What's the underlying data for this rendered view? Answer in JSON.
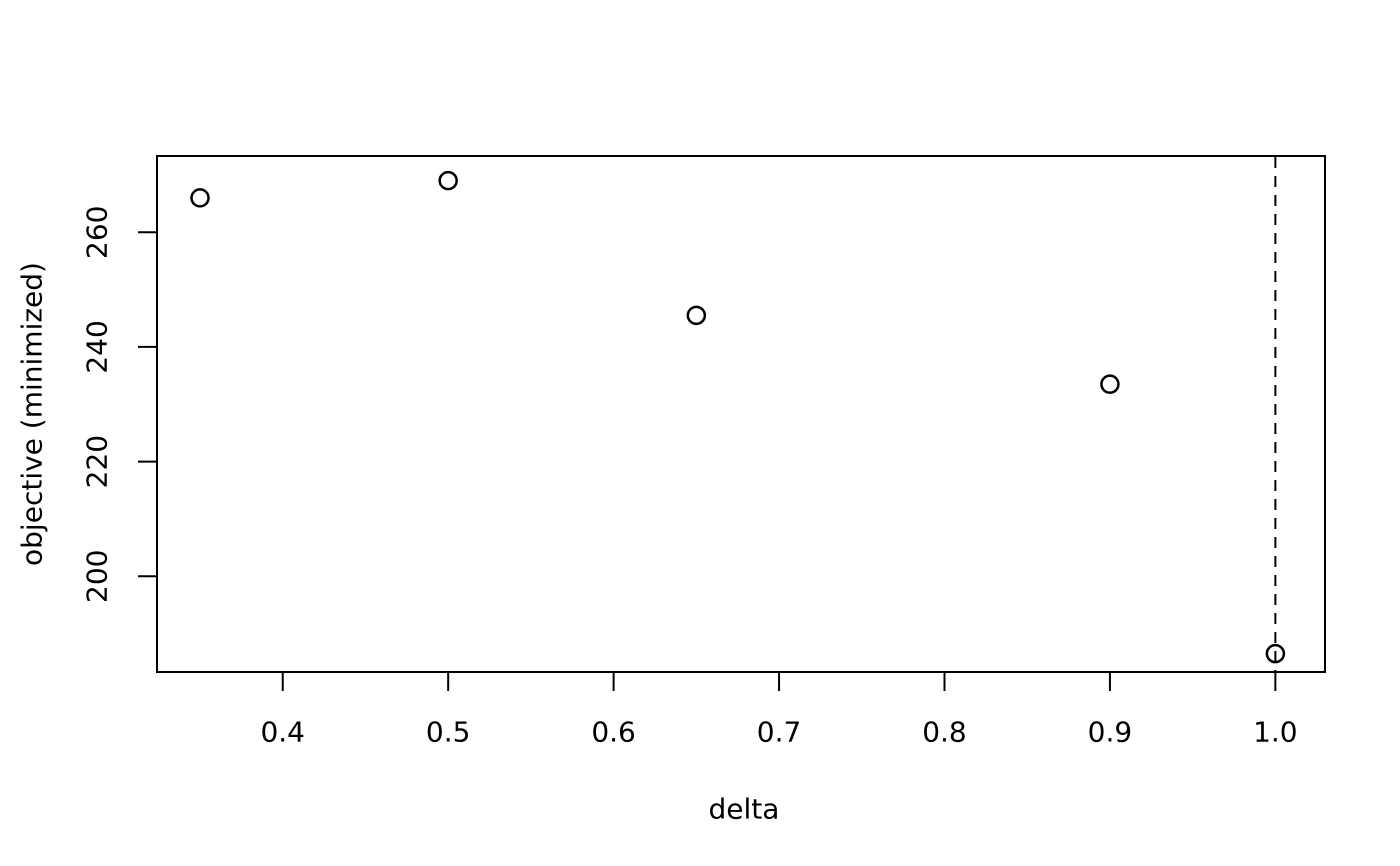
{
  "figure": {
    "background_color": "#ffffff",
    "foreground_color": "#000000"
  },
  "chart_data": {
    "type": "scatter",
    "title": "",
    "xlabel": "delta",
    "ylabel": "objective (minimized)",
    "points": [
      {
        "x": 0.35,
        "y": 266
      },
      {
        "x": 0.5,
        "y": 269
      },
      {
        "x": 0.65,
        "y": 245.5
      },
      {
        "x": 0.9,
        "y": 233.5
      },
      {
        "x": 1.0,
        "y": 186.5
      }
    ],
    "x_ticks": [
      {
        "value": 0.4,
        "label": "0.4"
      },
      {
        "value": 0.5,
        "label": "0.5"
      },
      {
        "value": 0.6,
        "label": "0.6"
      },
      {
        "value": 0.7,
        "label": "0.7"
      },
      {
        "value": 0.8,
        "label": "0.8"
      },
      {
        "value": 0.9,
        "label": "0.9"
      },
      {
        "value": 1.0,
        "label": "1.0"
      }
    ],
    "y_ticks": [
      {
        "value": 200,
        "label": "200"
      },
      {
        "value": 220,
        "label": "220"
      },
      {
        "value": 240,
        "label": "240"
      },
      {
        "value": 260,
        "label": "260"
      }
    ],
    "xlim": [
      0.324,
      1.03
    ],
    "ylim": [
      183.3,
      273.3
    ],
    "grid": false,
    "legend_position": "none",
    "marker": "open-circle",
    "marker_color": "#000000",
    "reference_line": {
      "axis": "vertical",
      "x": 1.0,
      "style": "dashed",
      "color": "#000000"
    }
  }
}
